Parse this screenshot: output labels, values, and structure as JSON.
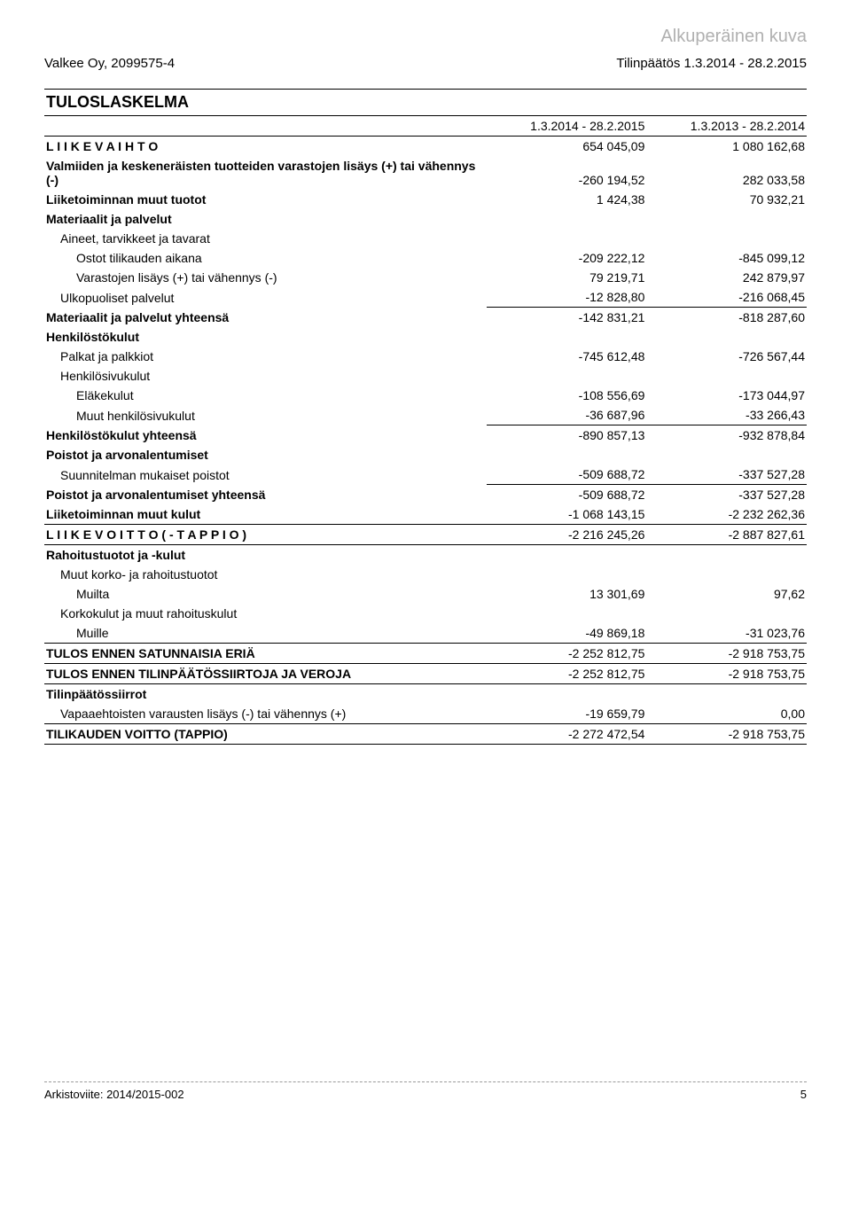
{
  "watermark": "Alkuperäinen kuva",
  "header": {
    "company": "Valkee Oy, 2099575-4",
    "report": "Tilinpäätös 1.3.2014 - 28.2.2015"
  },
  "section_title": "TULOSLASKELMA",
  "periods": {
    "current": "1.3.2014 - 28.2.2015",
    "prior": "1.3.2013 - 28.2.2014"
  },
  "rows": {
    "liikevaihto": {
      "label": "L I I K E V A I H T O",
      "v1": "654 045,09",
      "v2": "1 080 162,68"
    },
    "varasto_muutos": {
      "label": "Valmiiden ja keskeneräisten tuotteiden varastojen lisäys (+) tai vähennys (-)",
      "v1": "-260 194,52",
      "v2": "282 033,58"
    },
    "muut_tuotot": {
      "label": "Liiketoiminnan muut tuotot",
      "v1": "1 424,38",
      "v2": "70 932,21"
    },
    "mat_pal_head": {
      "label": "Materiaalit ja palvelut"
    },
    "aineet_head": {
      "label": "Aineet, tarvikkeet ja tavarat"
    },
    "ostot": {
      "label": "Ostot tilikauden aikana",
      "v1": "-209 222,12",
      "v2": "-845 099,12"
    },
    "varasto_lis": {
      "label": "Varastojen lisäys (+) tai vähennys (-)",
      "v1": "79 219,71",
      "v2": "242 879,97"
    },
    "ulkopuoliset": {
      "label": "Ulkopuoliset palvelut",
      "v1": "-12 828,80",
      "v2": "-216 068,45"
    },
    "mat_pal_yht": {
      "label": "Materiaalit ja palvelut yhteensä",
      "v1": "-142 831,21",
      "v2": "-818 287,60"
    },
    "henk_head": {
      "label": "Henkilöstökulut"
    },
    "palkat": {
      "label": "Palkat ja palkkiot",
      "v1": "-745 612,48",
      "v2": "-726 567,44"
    },
    "henkilosivu_head": {
      "label": "Henkilösivukulut"
    },
    "elake": {
      "label": "Eläkekulut",
      "v1": "-108 556,69",
      "v2": "-173 044,97"
    },
    "muut_hsk": {
      "label": "Muut henkilösivukulut",
      "v1": "-36 687,96",
      "v2": "-33 266,43"
    },
    "henk_yht": {
      "label": "Henkilöstökulut yhteensä",
      "v1": "-890 857,13",
      "v2": "-932 878,84"
    },
    "poistot_head": {
      "label": "Poistot ja arvonalentumiset"
    },
    "suunn_poistot": {
      "label": "Suunnitelman mukaiset poistot",
      "v1": "-509 688,72",
      "v2": "-337 527,28"
    },
    "poistot_yht": {
      "label": "Poistot ja arvonalentumiset yhteensä",
      "v1": "-509 688,72",
      "v2": "-337 527,28"
    },
    "muut_kulut": {
      "label": "Liiketoiminnan muut kulut",
      "v1": "-1 068 143,15",
      "v2": "-2 232 262,36"
    },
    "liikevoitto": {
      "label": "L I I K E V O I T T O  ( - T A P P I O )",
      "v1": "-2 216 245,26",
      "v2": "-2 887 827,61"
    },
    "rahoitus_head": {
      "label": "Rahoitustuotot ja -kulut"
    },
    "muut_korko_head": {
      "label": "Muut korko- ja rahoitustuotot"
    },
    "muilta": {
      "label": "Muilta",
      "v1": "13 301,69",
      "v2": "97,62"
    },
    "korkokulut_head": {
      "label": "Korkokulut ja muut rahoituskulut"
    },
    "muille": {
      "label": "Muille",
      "v1": "-49 869,18",
      "v2": "-31 023,76"
    },
    "tulos_sat": {
      "label": "TULOS ENNEN SATUNNAISIA ERIÄ",
      "v1": "-2 252 812,75",
      "v2": "-2 918 753,75"
    },
    "tulos_tps": {
      "label": "TULOS ENNEN TILINPÄÄTÖSSIIRTOJA  JA VEROJA",
      "v1": "-2 252 812,75",
      "v2": "-2 918 753,75"
    },
    "tps_head": {
      "label": "Tilinpäätössiirrot"
    },
    "vapaaeht": {
      "label": "Vapaaehtoisten varausten lisäys (-) tai vähennys (+)",
      "v1": "-19 659,79",
      "v2": "0,00"
    },
    "tilikauden": {
      "label": "TILIKAUDEN VOITTO (TAPPIO)",
      "v1": "-2 272 472,54",
      "v2": "-2 918 753,75"
    }
  },
  "footer": {
    "archive": "Arkistoviite: 2014/2015-002",
    "page": "5"
  }
}
